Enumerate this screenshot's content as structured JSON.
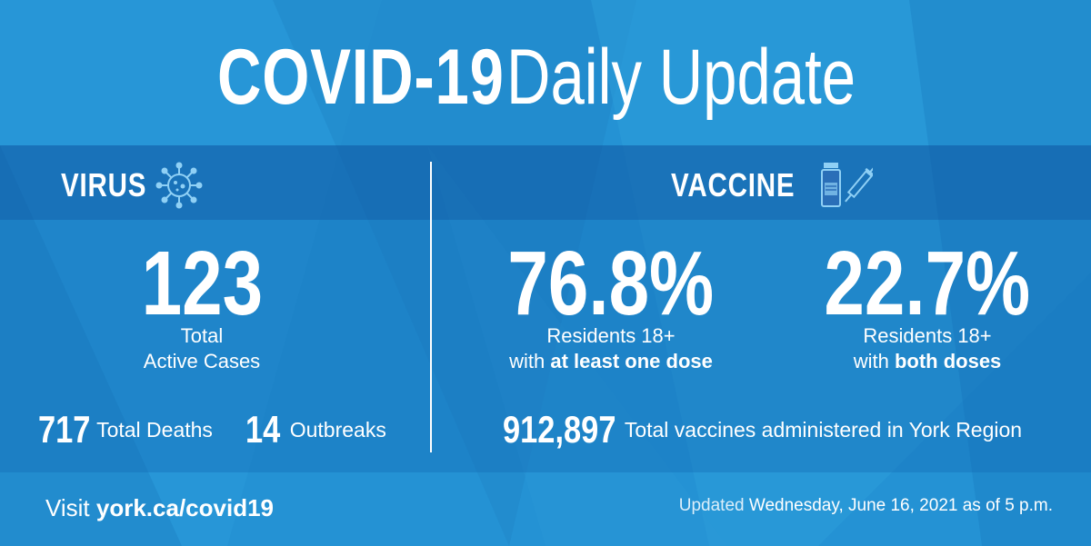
{
  "title": {
    "bold": "COVID-19",
    "light": "Daily Update"
  },
  "virus": {
    "heading": "VIRUS",
    "icon": "virus-icon",
    "active_cases": {
      "value": "123",
      "caption_line1": "Total",
      "caption_line2": "Active Cases"
    },
    "deaths": {
      "value": "717",
      "label": "Total Deaths"
    },
    "outbreaks": {
      "value": "14",
      "label": "Outbreaks"
    }
  },
  "vaccine": {
    "heading": "VACCINE",
    "icon": "vaccine-vial-syringe-icon",
    "one_dose": {
      "value": "76.8%",
      "caption_line1": "Residents 18+",
      "caption_prefix": "with",
      "caption_bold": "at least one dose"
    },
    "both_doses": {
      "value": "22.7%",
      "caption_line1": "Residents 18+",
      "caption_prefix": "with",
      "caption_bold": "both doses"
    },
    "total_administered": {
      "value": "912,897",
      "label": "Total vaccines administered in York Region"
    }
  },
  "footer": {
    "visit_prefix": "Visit",
    "visit_link": "york.ca/covid19",
    "updated_prefix": "Updated",
    "updated_date": "Wednesday, June 16, 2021 as of 5 p.m."
  },
  "colors": {
    "background": "#2492d4",
    "band_dark": "#1565ad",
    "text": "#ffffff"
  }
}
